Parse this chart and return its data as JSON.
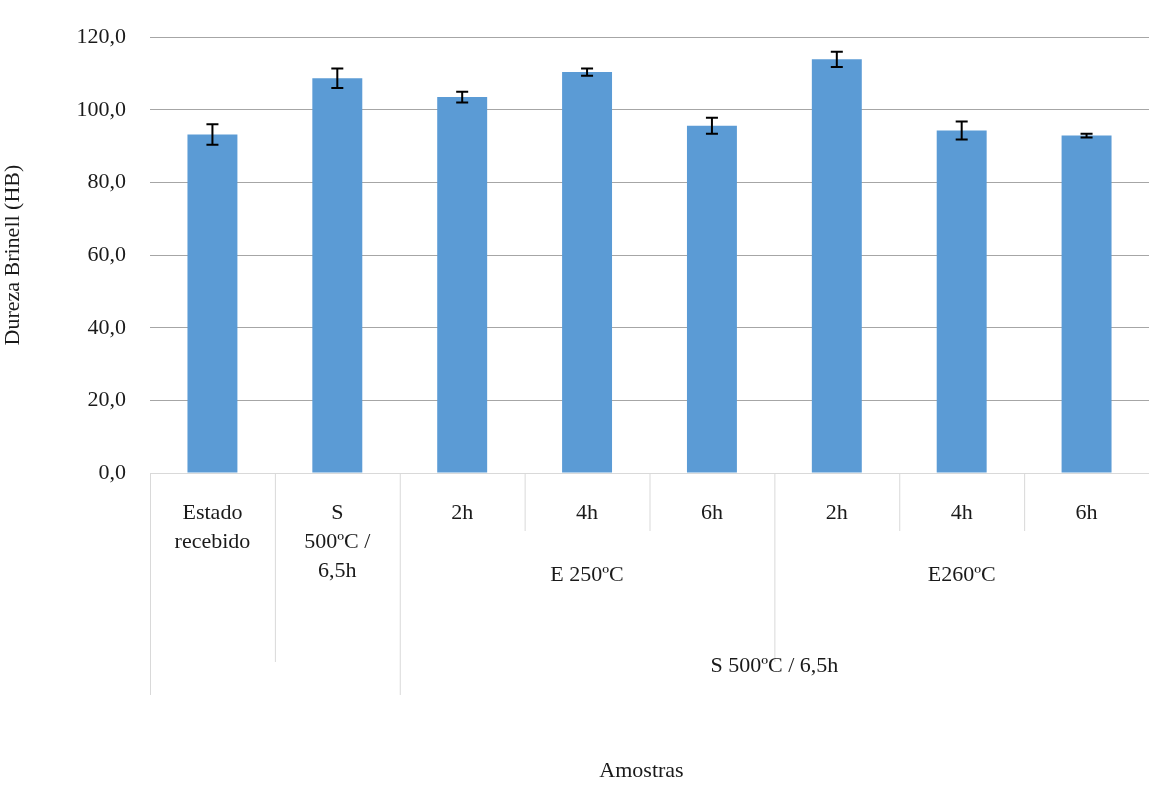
{
  "chart_data": {
    "type": "bar",
    "ylabel": "Dureza Brinell (HB)",
    "categories": [
      "Estado recebido",
      "S 500ºC / 6,5h",
      "2h",
      "4h",
      "6h",
      "2h",
      "4h",
      "6h"
    ],
    "values": [
      93.2,
      108.7,
      103.5,
      110.4,
      95.6,
      113.9,
      94.3,
      92.9
    ],
    "errors": [
      2.8,
      2.7,
      1.5,
      1.0,
      2.2,
      2.1,
      2.5,
      0.5
    ],
    "color": "#5b9bd5",
    "ylim": [
      0,
      120
    ],
    "yticks": [
      {
        "value": 0,
        "label": "0,0"
      },
      {
        "value": 20,
        "label": "20,0"
      },
      {
        "value": 40,
        "label": "40,0"
      },
      {
        "value": 60,
        "label": "60,0"
      },
      {
        "value": 80,
        "label": "80,0"
      },
      {
        "value": 100,
        "label": "100,0"
      },
      {
        "value": 120,
        "label": "120,0"
      }
    ],
    "grid": "y",
    "annotations": [
      "E 250ºC",
      "E260ºC",
      "S 500ºC / 6,5h",
      "Amostras"
    ]
  }
}
